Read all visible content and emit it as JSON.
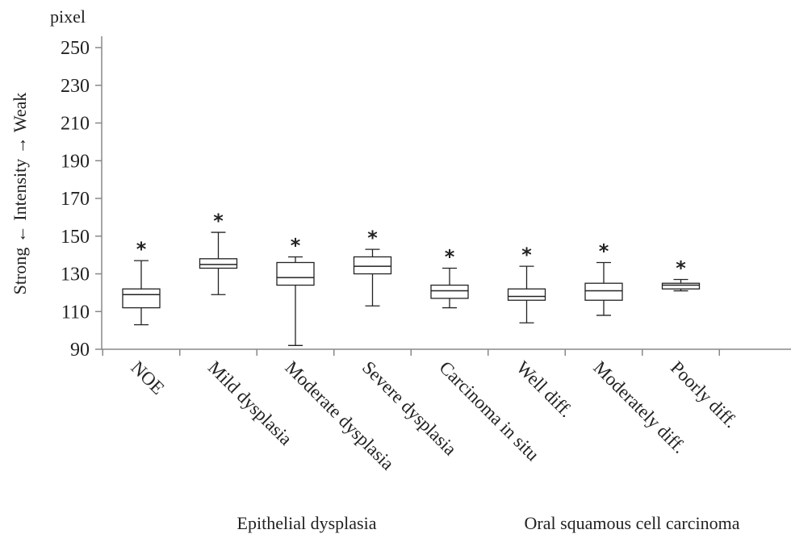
{
  "chart_data": {
    "type": "boxplot",
    "unit": "pixel",
    "ylabel": "Strong ← Intensity → Weak",
    "ylim": [
      90,
      250
    ],
    "yticks": [
      "250",
      "230",
      "210",
      "190",
      "170",
      "150",
      "130",
      "110",
      "90"
    ],
    "categories": [
      "NOE",
      "Mild dysplasia",
      "Moderate dysplasia",
      "Severe dysplasia",
      "Carcinoma in situ",
      "Well diff.",
      "Moderately diff.",
      "Poorly diff."
    ],
    "boxes": [
      {
        "min": 103,
        "q1": 112,
        "median": 119,
        "q3": 122,
        "max": 137
      },
      {
        "min": 119,
        "q1": 133,
        "median": 135,
        "q3": 138,
        "max": 152
      },
      {
        "min": 92,
        "q1": 124,
        "median": 128,
        "q3": 136,
        "max": 139
      },
      {
        "min": 113,
        "q1": 130,
        "median": 134,
        "q3": 139,
        "max": 143
      },
      {
        "min": 112,
        "q1": 117,
        "median": 121,
        "q3": 124,
        "max": 133
      },
      {
        "min": 104,
        "q1": 116,
        "median": 118,
        "q3": 122,
        "max": 134
      },
      {
        "min": 108,
        "q1": 116,
        "median": 121,
        "q3": 125,
        "max": 136
      },
      {
        "min": 121,
        "q1": 122,
        "median": 124,
        "q3": 125,
        "max": 127
      }
    ],
    "significance_markers": [
      "*",
      "*",
      "*",
      "*",
      "*",
      "*",
      "*",
      "*"
    ],
    "groups": [
      {
        "label": "Epithelial dysplasia"
      },
      {
        "label": "Oral squamous cell carcinoma"
      }
    ]
  }
}
